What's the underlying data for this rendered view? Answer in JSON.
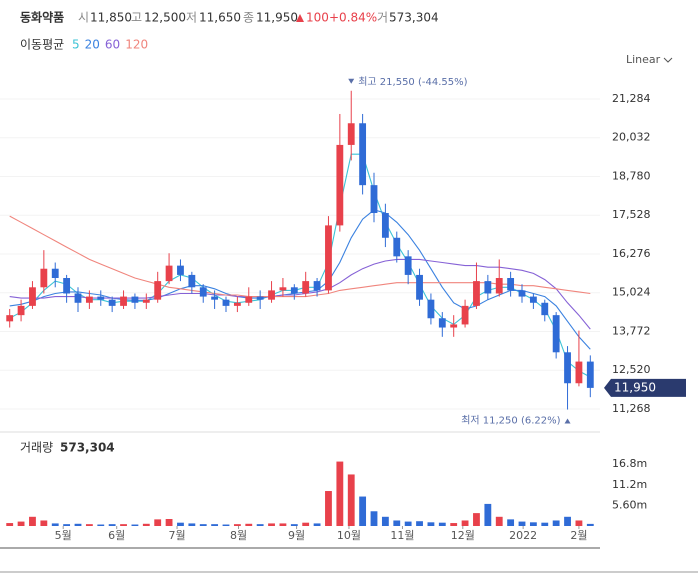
{
  "header": {
    "name": "동화약품",
    "open_label": "시",
    "open": "11,850",
    "high_label": "고",
    "high": "12,500",
    "low_label": "저",
    "low": "11,650",
    "close_label": "종",
    "close": "11,950",
    "change": "100",
    "change_pct": "+0.84%",
    "volume_label": "거",
    "volume": "573,304",
    "ma_label": "이동평균"
  },
  "chart_data": [
    {
      "type": "candlestick",
      "scale": "Linear",
      "up_color": "#e8414b",
      "down_color": "#2f6bd6",
      "open": [
        14100,
        14300,
        14600,
        15200,
        15800,
        15500,
        15000,
        14700,
        14900,
        14800,
        14600,
        14900,
        14700,
        14800,
        15400,
        15900,
        15600,
        15200,
        14900,
        14800,
        14600,
        14700,
        14900,
        14800,
        15100,
        15200,
        15000,
        15400,
        15100,
        17200,
        19800,
        20500,
        18500,
        17600,
        16800,
        16200,
        15600,
        14800,
        14200,
        13900,
        14000,
        14600,
        15400,
        15000,
        15500,
        15100,
        14900,
        14700,
        14300,
        13100,
        12100,
        12800
      ],
      "high": [
        14500,
        14800,
        15400,
        16400,
        16000,
        15600,
        15200,
        15100,
        15100,
        14900,
        15100,
        15000,
        15000,
        15700,
        16300,
        16100,
        15700,
        15300,
        15100,
        14900,
        14900,
        15200,
        15100,
        15400,
        15500,
        15300,
        15700,
        15500,
        17500,
        20800,
        21550,
        20800,
        18900,
        17900,
        17000,
        16400,
        15800,
        15000,
        14400,
        14300,
        14800,
        16000,
        15600,
        16100,
        15700,
        15300,
        15000,
        14800,
        14400,
        13300,
        13800,
        13000
      ],
      "low": [
        13900,
        14100,
        14500,
        15000,
        15200,
        14700,
        14400,
        14500,
        14600,
        14400,
        14500,
        14500,
        14500,
        14700,
        15300,
        15400,
        15000,
        14700,
        14500,
        14400,
        14400,
        14600,
        14500,
        14700,
        14900,
        14800,
        14900,
        14900,
        15000,
        17000,
        19300,
        18200,
        17300,
        16500,
        16000,
        15300,
        14600,
        14000,
        13600,
        13600,
        13900,
        14500,
        14800,
        14900,
        14900,
        14700,
        14500,
        14100,
        12900,
        11250,
        12000,
        11650
      ],
      "close": [
        14300,
        14600,
        15200,
        15800,
        15500,
        15000,
        14700,
        14900,
        14800,
        14600,
        14900,
        14700,
        14800,
        15400,
        15900,
        15600,
        15200,
        14900,
        14800,
        14600,
        14700,
        14900,
        14800,
        15100,
        15200,
        15000,
        15400,
        15100,
        17200,
        19800,
        20500,
        18500,
        17600,
        16800,
        16200,
        15600,
        14800,
        14200,
        13900,
        14000,
        14600,
        15400,
        15000,
        15500,
        15100,
        14900,
        14700,
        14300,
        13100,
        12100,
        12800,
        11950
      ],
      "ma": [
        {
          "name": "5",
          "color": "#3cc3d6",
          "values": [
            14200,
            14400,
            14700,
            15100,
            15400,
            15300,
            15000,
            14800,
            14800,
            14700,
            14750,
            14750,
            14750,
            15000,
            15400,
            15600,
            15500,
            15200,
            14950,
            14750,
            14700,
            14750,
            14800,
            14950,
            15100,
            15100,
            15200,
            15200,
            16000,
            17800,
            19500,
            19500,
            18300,
            17300,
            16600,
            16000,
            15300,
            14600,
            14200,
            14000,
            14300,
            14900,
            15100,
            15200,
            15200,
            15000,
            14800,
            14500,
            13800,
            12800,
            12500,
            12300
          ]
        },
        {
          "name": "20",
          "color": "#3b82e0",
          "values": [
            14600,
            14650,
            14750,
            14900,
            15000,
            15050,
            15050,
            15000,
            14950,
            14850,
            14800,
            14780,
            14780,
            14850,
            15000,
            15150,
            15250,
            15250,
            15150,
            15000,
            14900,
            14850,
            14850,
            14900,
            14950,
            15000,
            15050,
            15100,
            15400,
            16000,
            16800,
            17400,
            17700,
            17600,
            17300,
            16900,
            16400,
            15800,
            15200,
            14700,
            14500,
            14600,
            14800,
            14950,
            15100,
            15100,
            15000,
            14900,
            14600,
            14100,
            13600,
            13200
          ]
        },
        {
          "name": "60",
          "color": "#8662d6",
          "values": [
            14900,
            14850,
            14850,
            14850,
            14900,
            14900,
            14900,
            14850,
            14850,
            14850,
            14850,
            14850,
            14850,
            14900,
            14950,
            15000,
            15000,
            15000,
            14950,
            14950,
            14900,
            14900,
            14900,
            14900,
            14950,
            14950,
            15000,
            15050,
            15150,
            15350,
            15600,
            15800,
            15950,
            16050,
            16100,
            16100,
            16100,
            16050,
            16000,
            15950,
            15900,
            15900,
            15850,
            15850,
            15800,
            15750,
            15650,
            15450,
            15150,
            14700,
            14300,
            13850
          ]
        },
        {
          "name": "120",
          "color": "#f0857d",
          "values": [
            17500,
            17300,
            17100,
            16900,
            16700,
            16500,
            16300,
            16100,
            15950,
            15800,
            15650,
            15500,
            15400,
            15300,
            15200,
            15150,
            15100,
            15050,
            15000,
            14950,
            14950,
            14900,
            14900,
            14900,
            14900,
            14900,
            14900,
            14950,
            15000,
            15100,
            15150,
            15200,
            15250,
            15300,
            15350,
            15350,
            15350,
            15350,
            15350,
            15350,
            15350,
            15350,
            15350,
            15300,
            15300,
            15250,
            15250,
            15200,
            15150,
            15100,
            15050,
            15000
          ]
        }
      ],
      "xlim": [
        -0.5,
        51.5
      ],
      "ylim": [
        10751,
        22059
      ],
      "yticks": [
        {
          "value": 11268,
          "label": "11,268"
        },
        {
          "value": 12520,
          "label": "12,520"
        },
        {
          "value": 13772,
          "label": "13,772"
        },
        {
          "value": 15024,
          "label": "15,024"
        },
        {
          "value": 16276,
          "label": "16,276"
        },
        {
          "value": 17528,
          "label": "17,528"
        },
        {
          "value": 18780,
          "label": "18,780"
        },
        {
          "value": 20032,
          "label": "20,032"
        },
        {
          "value": 21284,
          "label": "21,284"
        }
      ],
      "grid": true,
      "high_annotation": "최고 21,550 (-44.55%)",
      "low_annotation": "최저 11,250 (6.22%)",
      "last_label": "11,950"
    },
    {
      "type": "bar",
      "title": "거래량",
      "title_value": "573,304",
      "values": [
        800000,
        1200000,
        2500000,
        1500000,
        700000,
        500000,
        600000,
        500000,
        400000,
        500000,
        500000,
        400000,
        600000,
        1800000,
        1900000,
        900000,
        700000,
        500000,
        500000,
        400000,
        500000,
        600000,
        500000,
        700000,
        700000,
        500000,
        900000,
        700000,
        9500000,
        17500000,
        14000000,
        8000000,
        4000000,
        2500000,
        1500000,
        1200000,
        1300000,
        1000000,
        900000,
        800000,
        1500000,
        3500000,
        6000000,
        2500000,
        1800000,
        1200000,
        1000000,
        900000,
        1500000,
        2500000,
        1500000,
        573304
      ],
      "ylim": [
        0,
        22000000
      ],
      "yticks": [
        {
          "value": 5600000,
          "label": "5.60m"
        },
        {
          "value": 11200000,
          "label": "11.2m"
        },
        {
          "value": 16800000,
          "label": "16.8m"
        }
      ],
      "xlim": [
        -0.5,
        51.5
      ],
      "xticks": [
        {
          "value": 4.7,
          "label": "5월"
        },
        {
          "value": 9.4,
          "label": "6월"
        },
        {
          "value": 14.7,
          "label": "7월"
        },
        {
          "value": 20.1,
          "label": "8월"
        },
        {
          "value": 25.2,
          "label": "9월"
        },
        {
          "value": 29.8,
          "label": "10월"
        },
        {
          "value": 34.5,
          "label": "11월"
        },
        {
          "value": 39.8,
          "label": "12월"
        },
        {
          "value": 45.1,
          "label": "2022"
        },
        {
          "value": 50.0,
          "label": "2월"
        }
      ]
    }
  ]
}
